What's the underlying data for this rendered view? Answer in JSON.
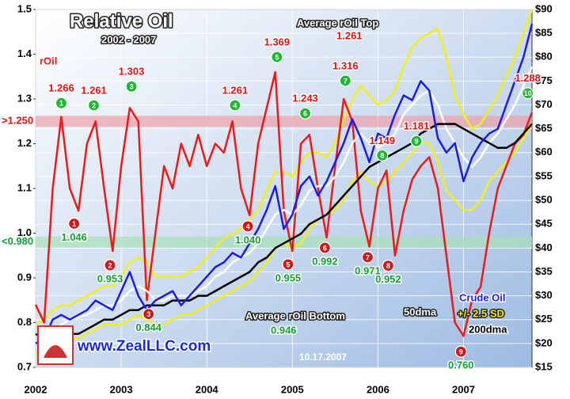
{
  "chart_data": {
    "type": "line",
    "title": "Relative Oil",
    "subtitle": "2002 - 2007",
    "source": "www.ZealLLC.com",
    "date": "10.17.2007",
    "grid": true,
    "x": [
      2002,
      2002.1,
      2002.2,
      2002.3,
      2002.4,
      2002.5,
      2002.6,
      2002.7,
      2002.8,
      2002.9,
      2003,
      2003.1,
      2003.2,
      2003.3,
      2003.4,
      2003.5,
      2003.6,
      2003.7,
      2003.8,
      2003.9,
      2004,
      2004.1,
      2004.2,
      2004.3,
      2004.4,
      2004.5,
      2004.6,
      2004.7,
      2004.8,
      2004.9,
      2005,
      2005.1,
      2005.2,
      2005.3,
      2005.4,
      2005.5,
      2005.6,
      2005.7,
      2005.8,
      2005.9,
      2006,
      2006.1,
      2006.2,
      2006.3,
      2006.4,
      2006.5,
      2006.6,
      2006.7,
      2006.8,
      2006.9,
      2007,
      2007.1,
      2007.2,
      2007.3,
      2007.4,
      2007.5,
      2007.6,
      2007.7,
      2007.8
    ],
    "xlim": [
      2002,
      2007.8
    ],
    "xticks": [
      2002,
      2003,
      2004,
      2005,
      2006,
      2007
    ],
    "ylim": [
      0.7,
      1.5
    ],
    "yticks": [
      0.7,
      0.8,
      0.9,
      {
        "value": 1.0,
        "label": "1.0"
      },
      1.1,
      1.2,
      1.3,
      1.4,
      1.5
    ],
    "y2lim": [
      15,
      90
    ],
    "y2ticks": [
      {
        "value": 15,
        "label": "$15"
      },
      {
        "value": 20,
        "label": "$20"
      },
      {
        "value": 25,
        "label": "$25"
      },
      {
        "value": 30,
        "label": "$30"
      },
      {
        "value": 35,
        "label": "$35"
      },
      {
        "value": 40,
        "label": "$40"
      },
      {
        "value": 45,
        "label": "$45"
      },
      {
        "value": 50,
        "label": "$50"
      },
      {
        "value": 55,
        "label": "$55"
      },
      {
        "value": 60,
        "label": "$60"
      },
      {
        "value": 65,
        "label": "$65"
      },
      {
        "value": 70,
        "label": "$70"
      },
      {
        "value": 75,
        "label": "$75"
      },
      {
        "value": 80,
        "label": "$80"
      },
      {
        "value": 85,
        "label": "$85"
      },
      {
        "value": 90,
        "label": "$90"
      }
    ],
    "band": {
      "name": "+/- 2.5 SD",
      "color": "#f2ee1c",
      "upper": [
        24,
        25,
        27,
        28,
        28,
        29,
        30,
        31,
        32,
        32,
        34,
        37,
        38,
        37,
        34,
        34,
        34,
        34,
        35,
        36,
        38,
        40,
        42,
        43,
        44,
        46,
        48,
        52,
        56,
        56,
        55,
        58,
        60,
        60,
        59,
        62,
        67,
        71,
        74,
        72,
        70,
        71,
        73,
        78,
        82,
        84,
        85,
        86,
        80,
        72,
        68,
        65,
        66,
        69,
        72,
        76,
        80,
        85,
        90
      ],
      "lower": [
        18,
        18,
        19,
        20,
        21,
        21,
        22,
        23,
        24,
        24,
        24,
        25,
        26,
        25,
        24,
        24,
        25,
        26,
        26,
        27,
        28,
        29,
        30,
        31,
        32,
        33,
        35,
        37,
        40,
        41,
        40,
        41,
        44,
        46,
        47,
        48,
        50,
        54,
        56,
        54,
        53,
        54,
        56,
        58,
        60,
        62,
        62,
        58,
        52,
        50,
        48,
        48,
        50,
        54,
        56,
        58,
        60,
        63,
        66
      ]
    },
    "series": [
      {
        "name": "rOil",
        "color": "#f01818",
        "axis": "y",
        "values": [
          0.84,
          0.8,
          1.1,
          1.26,
          1.1,
          1.05,
          1.2,
          1.25,
          1.1,
          0.96,
          1.15,
          1.28,
          1.25,
          0.85,
          1.0,
          1.15,
          1.1,
          1.2,
          1.15,
          1.22,
          1.15,
          1.2,
          1.18,
          1.25,
          1.1,
          1.04,
          1.2,
          1.28,
          1.36,
          1.05,
          0.96,
          1.2,
          1.22,
          1.1,
          0.99,
          1.15,
          1.3,
          1.25,
          1.05,
          0.97,
          1.1,
          1.14,
          0.95,
          1.05,
          1.12,
          1.15,
          1.17,
          1.1,
          0.95,
          0.8,
          0.77,
          0.85,
          0.88,
          1.0,
          1.1,
          1.15,
          1.2,
          1.22,
          1.27
        ]
      },
      {
        "name": "50dma",
        "color": "#ffffff",
        "axis": "y2",
        "values": [
          20,
          20.5,
          22,
          24,
          25,
          25.5,
          26,
          27,
          28,
          28,
          29,
          31,
          32,
          31,
          29,
          29,
          30,
          30,
          30,
          31,
          32,
          34,
          35,
          37,
          38,
          39,
          41,
          44,
          47,
          48,
          47,
          49,
          52,
          53,
          53,
          55,
          58,
          62,
          64,
          62,
          61,
          62,
          64,
          68,
          70,
          72,
          73,
          70,
          65,
          62,
          59,
          57,
          59,
          62,
          64,
          67,
          70,
          74,
          78
        ]
      },
      {
        "name": "200dma",
        "color": "#000000",
        "axis": "y2",
        "values": [
          22,
          21,
          21,
          21,
          22,
          22,
          23,
          24,
          25,
          25,
          26,
          27,
          27,
          28,
          28,
          28,
          29,
          29,
          29,
          30,
          30,
          31,
          32,
          33,
          34,
          35,
          37,
          38,
          40,
          41,
          42,
          43,
          45,
          46,
          47,
          49,
          51,
          53,
          55,
          57,
          58,
          59,
          60,
          61,
          62,
          64,
          65,
          66,
          66,
          66,
          65,
          64,
          63,
          62,
          61,
          61,
          62,
          64,
          66
        ]
      },
      {
        "name": "Crude Oil",
        "color": "#1c1ce6",
        "axis": "y2",
        "values": [
          20,
          21,
          25,
          26,
          25,
          26,
          27,
          29,
          28,
          27,
          31,
          35,
          30,
          27,
          29,
          30,
          31,
          28,
          30,
          32,
          34,
          36,
          37,
          39,
          38,
          41,
          44,
          48,
          53,
          44,
          47,
          53,
          55,
          51,
          54,
          58,
          62,
          67,
          63,
          58,
          64,
          63,
          68,
          72,
          71,
          75,
          73,
          63,
          60,
          62,
          54,
          59,
          62,
          64,
          65,
          70,
          75,
          80,
          87
        ]
      }
    ],
    "thresholds": [
      {
        "value": 1.25,
        "label": ">1.250",
        "color": "#f0a0a8"
      },
      {
        "value": 0.98,
        "label": "<0.980",
        "color": "#a8e0b8"
      }
    ],
    "averages": [
      {
        "name": "Average rOil Top",
        "value": 1.261
      },
      {
        "name": "Average rOil Bottom",
        "value": 0.946
      }
    ],
    "tops": [
      {
        "marker": "1",
        "x": 2002.3,
        "value": 1.266,
        "label": "1.266"
      },
      {
        "marker": "2",
        "x": 2002.68,
        "value": 1.261,
        "label": "1.261"
      },
      {
        "marker": "3",
        "x": 2003.12,
        "value": 1.303,
        "label": "1.303"
      },
      {
        "marker": "4",
        "x": 2004.33,
        "value": 1.261,
        "label": "1.261"
      },
      {
        "marker": "5",
        "x": 2004.82,
        "value": 1.369,
        "label": "1.369"
      },
      {
        "marker": "6",
        "x": 2005.15,
        "value": 1.243,
        "label": "1.243"
      },
      {
        "marker": "7",
        "x": 2005.62,
        "value": 1.316,
        "label": "1.316"
      },
      {
        "marker": "8",
        "x": 2006.05,
        "value": 1.149,
        "label": "1.149"
      },
      {
        "marker": "9",
        "x": 2006.45,
        "value": 1.181,
        "label": "1.181"
      },
      {
        "marker": "10",
        "x": 2007.75,
        "value": 1.288,
        "label": "1.288"
      }
    ],
    "bottoms": [
      {
        "marker": "1",
        "x": 2002.45,
        "value": 1.046,
        "label": "1.046"
      },
      {
        "marker": "2",
        "x": 2002.87,
        "value": 0.953,
        "label": "0.953"
      },
      {
        "marker": "3",
        "x": 2003.32,
        "value": 0.844,
        "label": "0.844"
      },
      {
        "marker": "4",
        "x": 2004.48,
        "value": 1.04,
        "label": "1.040"
      },
      {
        "marker": "5",
        "x": 2004.95,
        "value": 0.955,
        "label": "0.955"
      },
      {
        "marker": "6",
        "x": 2005.38,
        "value": 0.992,
        "label": "0.992"
      },
      {
        "marker": "7",
        "x": 2005.88,
        "value": 0.971,
        "label": "0.971"
      },
      {
        "marker": "8",
        "x": 2006.12,
        "value": 0.952,
        "label": "0.952"
      },
      {
        "marker": "9",
        "x": 2006.97,
        "value": 0.76,
        "label": "0.760"
      }
    ]
  }
}
